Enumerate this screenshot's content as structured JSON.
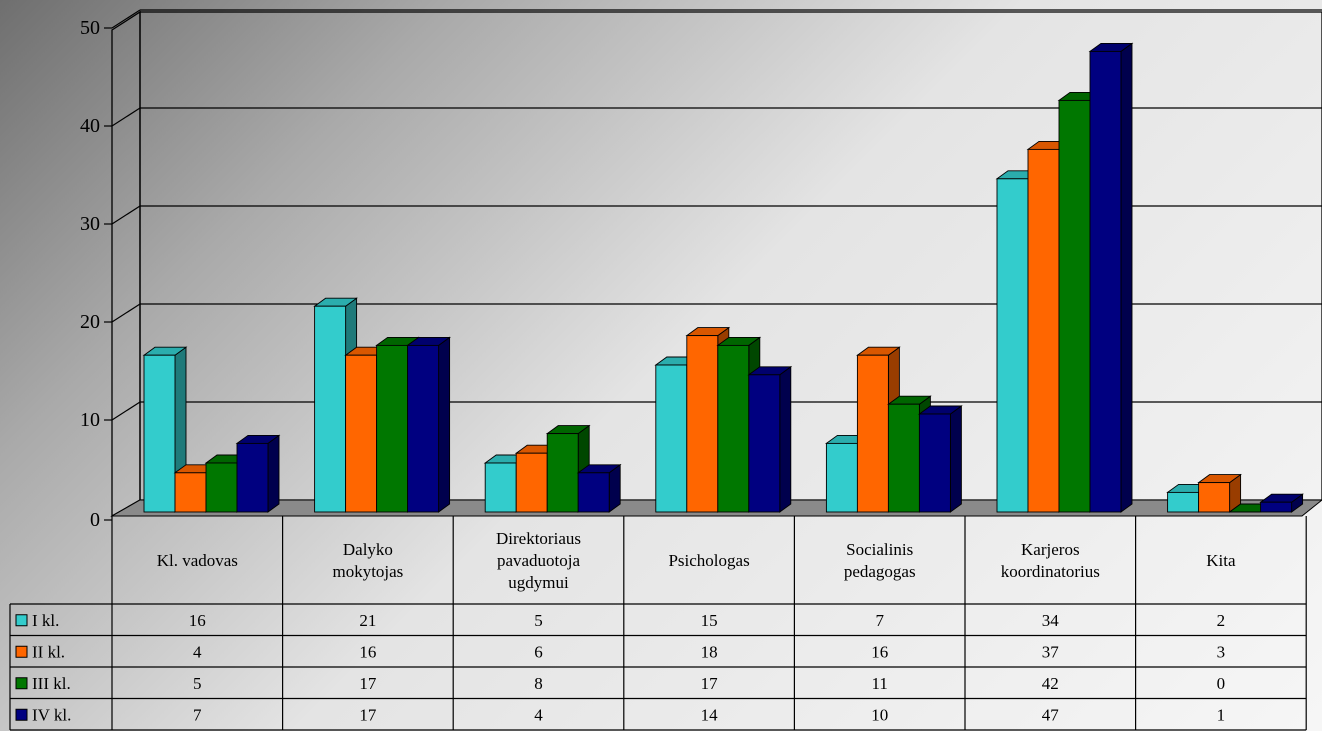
{
  "chart_data": {
    "type": "bar",
    "style": "3d-clustered-column with data table",
    "ylim": [
      0,
      50
    ],
    "yticks": [
      0,
      10,
      20,
      30,
      40,
      50
    ],
    "grid": true,
    "categories": [
      [
        "Kl. vadovas"
      ],
      [
        "Dalyko",
        "mokytojas"
      ],
      [
        "Direktoriaus",
        "pavaduotoja",
        "ugdymui"
      ],
      [
        "Psichologas"
      ],
      [
        "Socialinis",
        "pedagogas"
      ],
      [
        "Karjeros",
        "koordinatorius"
      ],
      [
        "Kita"
      ]
    ],
    "series": [
      {
        "name": "I kl.",
        "color": "#33CCCC",
        "values": [
          16,
          21,
          5,
          15,
          7,
          34,
          2
        ]
      },
      {
        "name": "II kl.",
        "color": "#FF6600",
        "values": [
          4,
          16,
          6,
          18,
          16,
          37,
          3
        ]
      },
      {
        "name": "III kl.",
        "color": "#007700",
        "values": [
          5,
          17,
          8,
          17,
          11,
          42,
          0
        ]
      },
      {
        "name": "IV kl.",
        "color": "#000080",
        "values": [
          7,
          17,
          4,
          14,
          10,
          47,
          1
        ]
      }
    ]
  }
}
